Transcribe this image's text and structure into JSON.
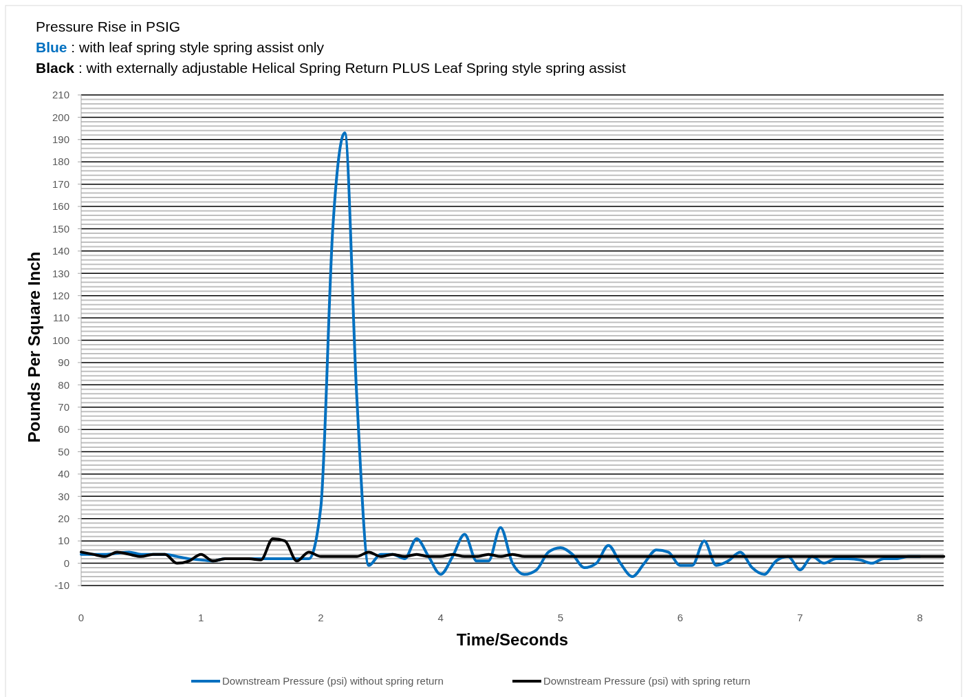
{
  "chart_data": {
    "type": "line",
    "title": "Pressure Rise in PSIG",
    "annotations": [
      "Blue : with leaf spring style spring assist only",
      "Black : with externally adjustable Helical Spring Return PLUS Leaf Spring style spring assist"
    ],
    "xlabel": "Time/Seconds",
    "ylabel": "Pounds Per Square Inch",
    "categories": [
      "0",
      null,
      null,
      null,
      null,
      null,
      null,
      null,
      null,
      null,
      "1",
      null,
      null,
      null,
      null,
      null,
      null,
      null,
      null,
      null,
      "2",
      null,
      null,
      null,
      null,
      null,
      null,
      null,
      null,
      null,
      "4",
      null,
      null,
      null,
      null,
      null,
      null,
      null,
      null,
      null,
      "5",
      null,
      null,
      null,
      null,
      null,
      null,
      null,
      null,
      null,
      "6",
      null,
      null,
      null,
      null,
      null,
      null,
      null,
      null,
      null,
      "7",
      null,
      null,
      null,
      null,
      null,
      null,
      null,
      null,
      null,
      "8",
      null,
      null
    ],
    "ylim": [
      -10,
      210
    ],
    "yticks": [
      -10,
      0,
      10,
      20,
      30,
      40,
      50,
      60,
      70,
      80,
      90,
      100,
      110,
      120,
      130,
      140,
      150,
      160,
      170,
      180,
      190,
      200,
      210
    ],
    "grid": "y",
    "legend": "bottom",
    "line_style": "solid",
    "series": [
      {
        "name": "Downstream Pressure (psi) without spring return",
        "color": "#0070c0",
        "values": [
          4,
          4,
          4,
          4.5,
          5,
          4,
          4,
          4,
          3,
          2,
          1.5,
          1,
          2,
          2,
          2,
          2,
          2,
          2,
          2,
          2,
          25,
          150,
          193,
          75,
          -1,
          4,
          4,
          2,
          11,
          3,
          -5,
          3,
          13,
          1,
          1,
          16,
          0,
          -5,
          -3,
          5,
          7,
          4,
          -2,
          0,
          8,
          0,
          -6,
          0,
          6,
          5,
          -1,
          -1,
          10,
          -1,
          1,
          5,
          -2,
          -5,
          1,
          3,
          -3,
          3,
          0,
          2,
          2,
          1.5,
          0,
          2,
          2,
          3,
          3,
          null,
          null
        ]
      },
      {
        "name": "Downstream Pressure (psi) with spring return",
        "color": "#000000",
        "values": [
          5,
          4,
          3,
          5,
          4,
          3,
          4,
          4,
          0,
          1,
          4,
          1,
          2,
          2,
          2,
          1.5,
          11,
          10,
          1,
          5,
          3,
          3,
          3,
          3,
          5,
          3,
          4,
          3,
          4,
          3,
          3,
          4,
          3,
          3,
          4,
          3,
          4,
          3,
          3,
          3,
          3,
          3,
          3,
          3,
          3,
          3,
          3,
          3,
          3,
          3,
          3,
          3,
          3,
          3,
          3,
          3,
          3,
          3,
          3,
          3,
          3,
          3,
          3,
          3,
          3,
          3,
          3,
          3,
          3,
          3,
          3,
          3,
          3
        ]
      }
    ]
  }
}
